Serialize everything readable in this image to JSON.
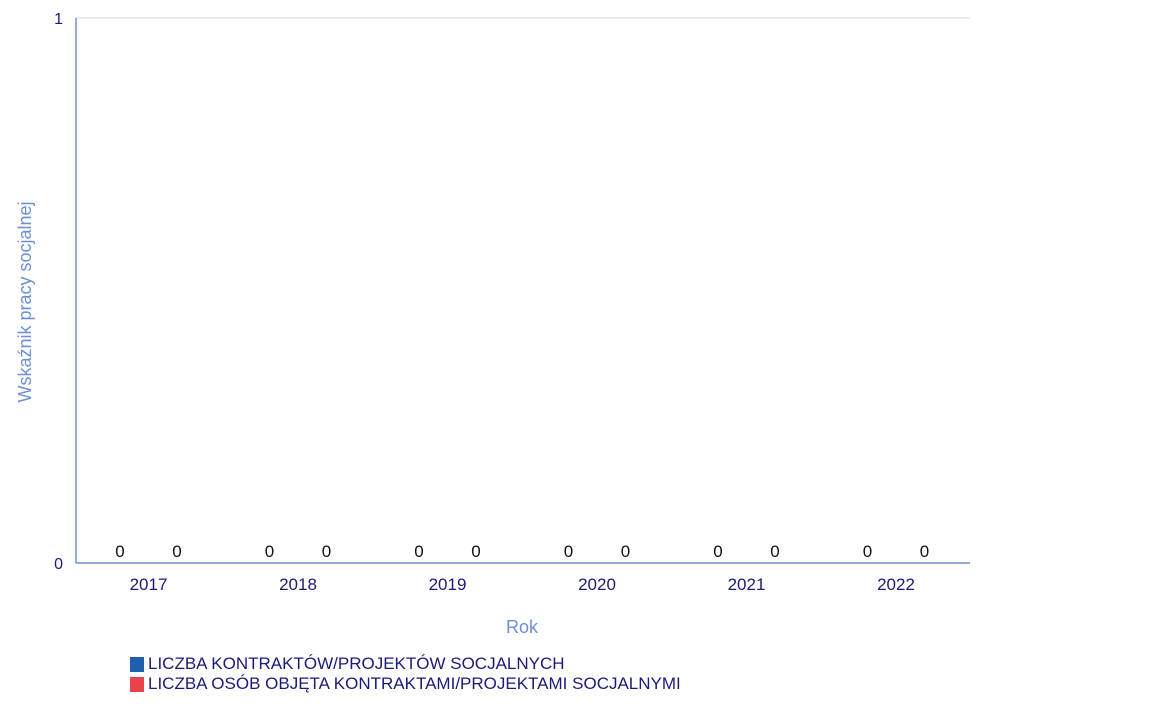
{
  "chart_data": {
    "type": "bar",
    "xlabel": "Rok",
    "ylabel": "Wskaźnik pracy socjalnej",
    "categories": [
      "2017",
      "2018",
      "2019",
      "2020",
      "2021",
      "2022"
    ],
    "ylim": [
      0,
      1
    ],
    "yticks": [
      "0",
      "1"
    ],
    "series": [
      {
        "name": "LICZBA KONTRAKTÓW/PROJEKTÓW SOCJALNYCH",
        "color": "#1f5fae",
        "values": [
          0,
          0,
          0,
          0,
          0,
          0
        ],
        "labels": [
          "0",
          "0",
          "0",
          "0",
          "0",
          "0"
        ]
      },
      {
        "name": "LICZBA OSÓB OBJĘTA KONTRAKTAMI/PROJEKTAMI SOCJALNYMI",
        "color": "#e8424a",
        "values": [
          0,
          0,
          0,
          0,
          0,
          0
        ],
        "labels": [
          "0",
          "0",
          "0",
          "0",
          "0",
          "0"
        ]
      }
    ],
    "grid": true,
    "legend": "bottom-left"
  }
}
